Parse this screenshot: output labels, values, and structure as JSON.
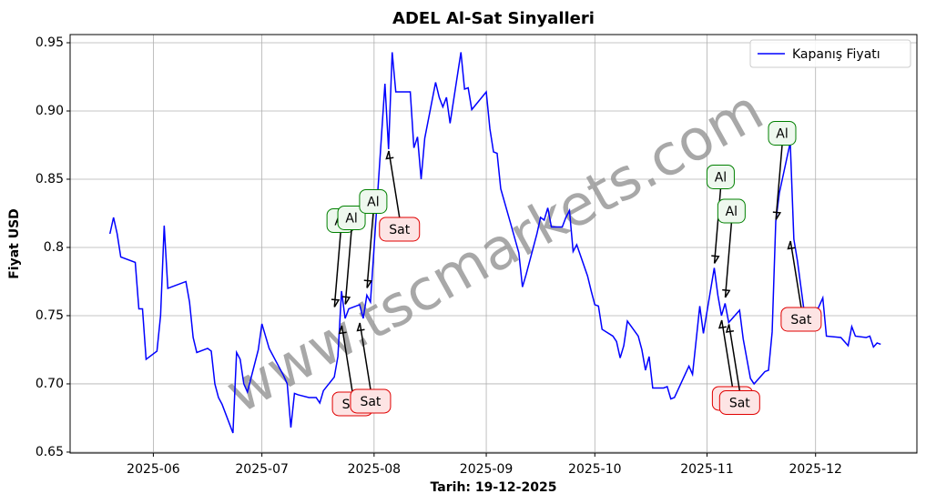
{
  "chart_data": {
    "type": "line",
    "title": "ADEL Al-Sat Sinyalleri",
    "x_label": "Tarih: 19-12-2025",
    "y_label": "Fiyat USD",
    "watermark": "www.tscmarkets.com",
    "grid": true,
    "legend": "upper right",
    "xlim": [
      "2025-05-09",
      "2025-12-29"
    ],
    "xticks": [
      "2025-06",
      "2025-07",
      "2025-08",
      "2025-09",
      "2025-10",
      "2025-11",
      "2025-12"
    ],
    "ylim": [
      0.6493,
      0.956
    ],
    "yticks": [
      0.65,
      {
        "value": 0.7,
        "label": "0.70"
      },
      0.75,
      0.8,
      0.85,
      {
        "value": 0.9,
        "label": "0.90"
      },
      0.95
    ],
    "x": [
      "2025-05-20",
      "2025-05-21",
      "2025-05-22",
      "2025-05-23",
      "2025-05-27",
      "2025-05-28",
      "2025-05-29",
      "2025-05-30",
      "2025-06-02",
      "2025-06-03",
      "2025-06-04",
      "2025-06-05",
      "2025-06-06",
      "2025-06-10",
      "2025-06-11",
      "2025-06-12",
      "2025-06-13",
      "2025-06-16",
      "2025-06-17",
      "2025-06-18",
      "2025-06-19",
      "2025-06-20",
      "2025-06-23",
      "2025-06-24",
      "2025-06-25",
      "2025-06-26",
      "2025-06-27",
      "2025-06-30",
      "2025-07-01",
      "2025-07-02",
      "2025-07-03",
      "2025-07-07",
      "2025-07-08",
      "2025-07-09",
      "2025-07-10",
      "2025-07-11",
      "2025-07-14",
      "2025-07-15",
      "2025-07-16",
      "2025-07-17",
      "2025-07-18",
      "2025-07-21",
      "2025-07-22",
      "2025-07-23",
      "2025-07-24",
      "2025-07-25",
      "2025-07-28",
      "2025-07-29",
      "2025-07-30",
      "2025-07-31",
      "2025-08-01",
      "2025-08-04",
      "2025-08-05",
      "2025-08-06",
      "2025-08-07",
      "2025-08-08",
      "2025-08-11",
      "2025-08-12",
      "2025-08-13",
      "2025-08-14",
      "2025-08-15",
      "2025-08-18",
      "2025-08-19",
      "2025-08-20",
      "2025-08-21",
      "2025-08-22",
      "2025-08-25",
      "2025-08-26",
      "2025-08-27",
      "2025-08-28",
      "2025-09-01",
      "2025-09-02",
      "2025-09-03",
      "2025-09-04",
      "2025-09-05",
      "2025-09-08",
      "2025-09-10",
      "2025-09-11",
      "2025-09-12",
      "2025-09-15",
      "2025-09-16",
      "2025-09-17",
      "2025-09-18",
      "2025-09-19",
      "2025-09-22",
      "2025-09-23",
      "2025-09-24",
      "2025-09-25",
      "2025-09-26",
      "2025-09-29",
      "2025-09-30",
      "2025-10-01",
      "2025-10-02",
      "2025-10-03",
      "2025-10-06",
      "2025-10-07",
      "2025-10-08",
      "2025-10-09",
      "2025-10-10",
      "2025-10-13",
      "2025-10-14",
      "2025-10-15",
      "2025-10-16",
      "2025-10-17",
      "2025-10-20",
      "2025-10-21",
      "2025-10-22",
      "2025-10-23",
      "2025-10-27",
      "2025-10-28",
      "2025-10-30",
      "2025-10-31",
      "2025-11-03",
      "2025-11-04",
      "2025-11-05",
      "2025-11-06",
      "2025-11-07",
      "2025-11-10",
      "2025-11-11",
      "2025-11-13",
      "2025-11-14",
      "2025-11-17",
      "2025-11-18",
      "2025-11-19",
      "2025-11-20",
      "2025-11-21",
      "2025-11-24",
      "2025-11-25",
      "2025-11-26",
      "2025-11-28",
      "2025-12-01",
      "2025-12-02",
      "2025-12-03",
      "2025-12-04",
      "2025-12-08",
      "2025-12-10",
      "2025-12-11",
      "2025-12-12",
      "2025-12-15",
      "2025-12-16",
      "2025-12-17",
      "2025-12-18",
      "2025-12-19"
    ],
    "series": [
      {
        "name": "Kapanış Fiyatı",
        "color": "#0000ff",
        "values": [
          0.81,
          0.822,
          0.81,
          0.793,
          0.789,
          0.755,
          0.755,
          0.718,
          0.724,
          0.75,
          0.816,
          0.77,
          0.771,
          0.775,
          0.76,
          0.734,
          0.723,
          0.726,
          0.724,
          0.7,
          0.69,
          0.685,
          0.664,
          0.723,
          0.718,
          0.7,
          0.694,
          0.725,
          0.744,
          0.735,
          0.726,
          0.706,
          0.7,
          0.668,
          0.693,
          0.692,
          0.69,
          0.69,
          0.69,
          0.686,
          0.695,
          0.705,
          0.72,
          0.768,
          0.748,
          0.755,
          0.758,
          0.748,
          0.765,
          0.76,
          0.8,
          0.92,
          0.872,
          0.943,
          0.914,
          0.914,
          0.914,
          0.873,
          0.881,
          0.85,
          0.88,
          0.921,
          0.91,
          0.903,
          0.91,
          0.891,
          0.943,
          0.916,
          0.917,
          0.901,
          0.914,
          0.887,
          0.87,
          0.869,
          0.843,
          0.815,
          0.796,
          0.771,
          0.78,
          0.81,
          0.822,
          0.82,
          0.829,
          0.815,
          0.815,
          0.822,
          0.827,
          0.797,
          0.802,
          0.779,
          0.768,
          0.758,
          0.757,
          0.74,
          0.735,
          0.731,
          0.719,
          0.728,
          0.746,
          0.735,
          0.725,
          0.71,
          0.72,
          0.697,
          0.697,
          0.698,
          0.689,
          0.69,
          0.713,
          0.707,
          0.757,
          0.737,
          0.785,
          0.765,
          0.75,
          0.759,
          0.745,
          0.754,
          0.733,
          0.704,
          0.7,
          0.709,
          0.71,
          0.738,
          0.819,
          0.84,
          0.877,
          0.806,
          0.79,
          0.75,
          0.752,
          0.757,
          0.763,
          0.735,
          0.734,
          0.728,
          0.742,
          0.735,
          0.734,
          0.735,
          0.727,
          0.73,
          0.729
        ]
      }
    ],
    "annotations": [
      {
        "text": "Al",
        "x": "2025-07-21",
        "y": 0.755
      },
      {
        "text": "Al",
        "x": "2025-07-24",
        "y": 0.757
      },
      {
        "text": "Al",
        "x": "2025-07-30",
        "y": 0.769
      },
      {
        "text": "Sat",
        "x": "2025-08-05",
        "y": 0.872
      },
      {
        "text": "Sat",
        "x": "2025-07-23",
        "y": 0.744
      },
      {
        "text": "Sat",
        "x": "2025-07-28",
        "y": 0.746
      },
      {
        "text": "Al",
        "x": "2025-11-03",
        "y": 0.787
      },
      {
        "text": "Al",
        "x": "2025-11-06",
        "y": 0.762
      },
      {
        "text": "Al",
        "x": "2025-11-20",
        "y": 0.819
      },
      {
        "text": "Sat",
        "x": "2025-11-05",
        "y": 0.748
      },
      {
        "text": "Sat",
        "x": "2025-11-07",
        "y": 0.745
      },
      {
        "text": "Sat",
        "x": "2025-11-24",
        "y": 0.806
      }
    ]
  }
}
